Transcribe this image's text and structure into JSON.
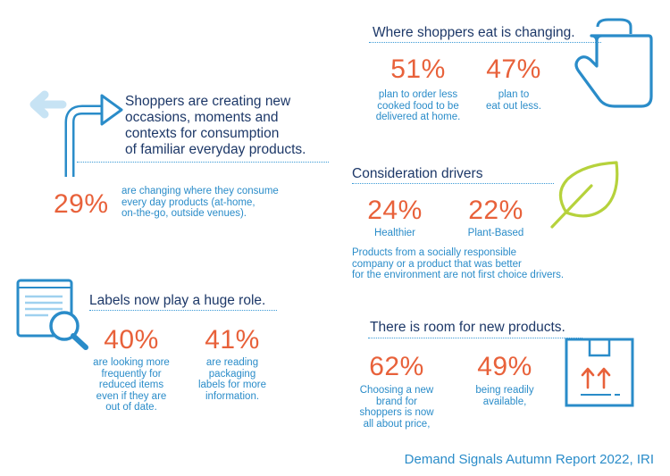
{
  "occasions": {
    "heading_lines": [
      "Shoppers are creating new",
      "occasions, moments and",
      "contexts for consumption",
      "of familiar everyday products."
    ],
    "stat": {
      "value": "29%",
      "desc_lines": [
        "are changing where they consume",
        "every day products (at-home,",
        "on-the-go, outside venues)."
      ]
    },
    "icon": "turn-arrow-icon"
  },
  "eat": {
    "heading": "Where shoppers eat is changing.",
    "stats": [
      {
        "value": "51%",
        "desc_lines": [
          "plan to order less",
          "cooked food to be",
          "delivered at home."
        ]
      },
      {
        "value": "47%",
        "desc_lines": [
          "plan to",
          "eat out less."
        ]
      }
    ],
    "icon": "oven-mitt-icon"
  },
  "consideration": {
    "heading": "Consideration drivers",
    "stats": [
      {
        "value": "24%",
        "label": "Healthier"
      },
      {
        "value": "22%",
        "label": "Plant-Based"
      }
    ],
    "note_lines": [
      "Products from a socially responsible",
      "company or a product that was better",
      "for the environment are not first choice drivers."
    ],
    "icon": "leaf-icon"
  },
  "labels": {
    "heading": "Labels now play a huge role.",
    "stats": [
      {
        "value": "40%",
        "desc_lines": [
          "are looking more",
          "frequently for",
          "reduced items",
          "even if they are",
          "out of date."
        ]
      },
      {
        "value": "41%",
        "desc_lines": [
          "are reading",
          "packaging",
          "labels for more",
          "information."
        ]
      }
    ],
    "icon": "label-magnifier-icon"
  },
  "products": {
    "heading": "There is room for new products.",
    "stats": [
      {
        "value": "62%",
        "desc_lines": [
          "Choosing a new",
          "brand for",
          "shoppers is now",
          "all about price,"
        ]
      },
      {
        "value": "49%",
        "desc_lines": [
          "being readily",
          "available,"
        ]
      }
    ],
    "icon": "box-arrows-icon"
  },
  "footer": {
    "source": "Demand Signals Autumn Report 2022, IRI"
  },
  "colors": {
    "heading": "#1d3868",
    "stat": "#e8613a",
    "text": "#2a8cc9",
    "leaf": "#b6d23c"
  }
}
